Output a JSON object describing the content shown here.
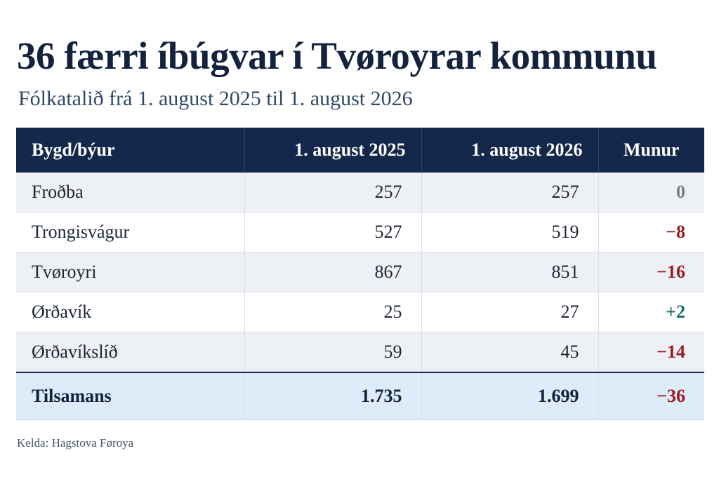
{
  "title": "36 færri íbúgvar í Tvøroyrar kommunu",
  "subtitle": "Fólkatalið frá 1. august 2025 til 1. august 2026",
  "table": {
    "headers": [
      "Bygd/býur",
      "1. august 2025",
      "1. august 2026",
      "Munur"
    ],
    "rows": [
      {
        "name": "Froðba",
        "y2025": "257",
        "y2026": "257",
        "diff": "0"
      },
      {
        "name": "Trongisvágur",
        "y2025": "527",
        "y2026": "519",
        "diff": "−8"
      },
      {
        "name": "Tvøroyri",
        "y2025": "867",
        "y2026": "851",
        "diff": "−16"
      },
      {
        "name": "Ørðavík",
        "y2025": "25",
        "y2026": "27",
        "diff": "+2"
      },
      {
        "name": "Ørðavíkslíð",
        "y2025": "59",
        "y2026": "45",
        "diff": "−14"
      }
    ],
    "total": {
      "name": "Tilsamans",
      "y2025": "1.735",
      "y2026": "1.699",
      "diff": "−36"
    }
  },
  "source": "Kelda: Hagstova Føroya",
  "colors": {
    "header_bg": "#13284a",
    "negative": "#9b1c20",
    "positive": "#1d6a63",
    "neutral": "#767d86",
    "total_bg": "#dcecf8"
  }
}
